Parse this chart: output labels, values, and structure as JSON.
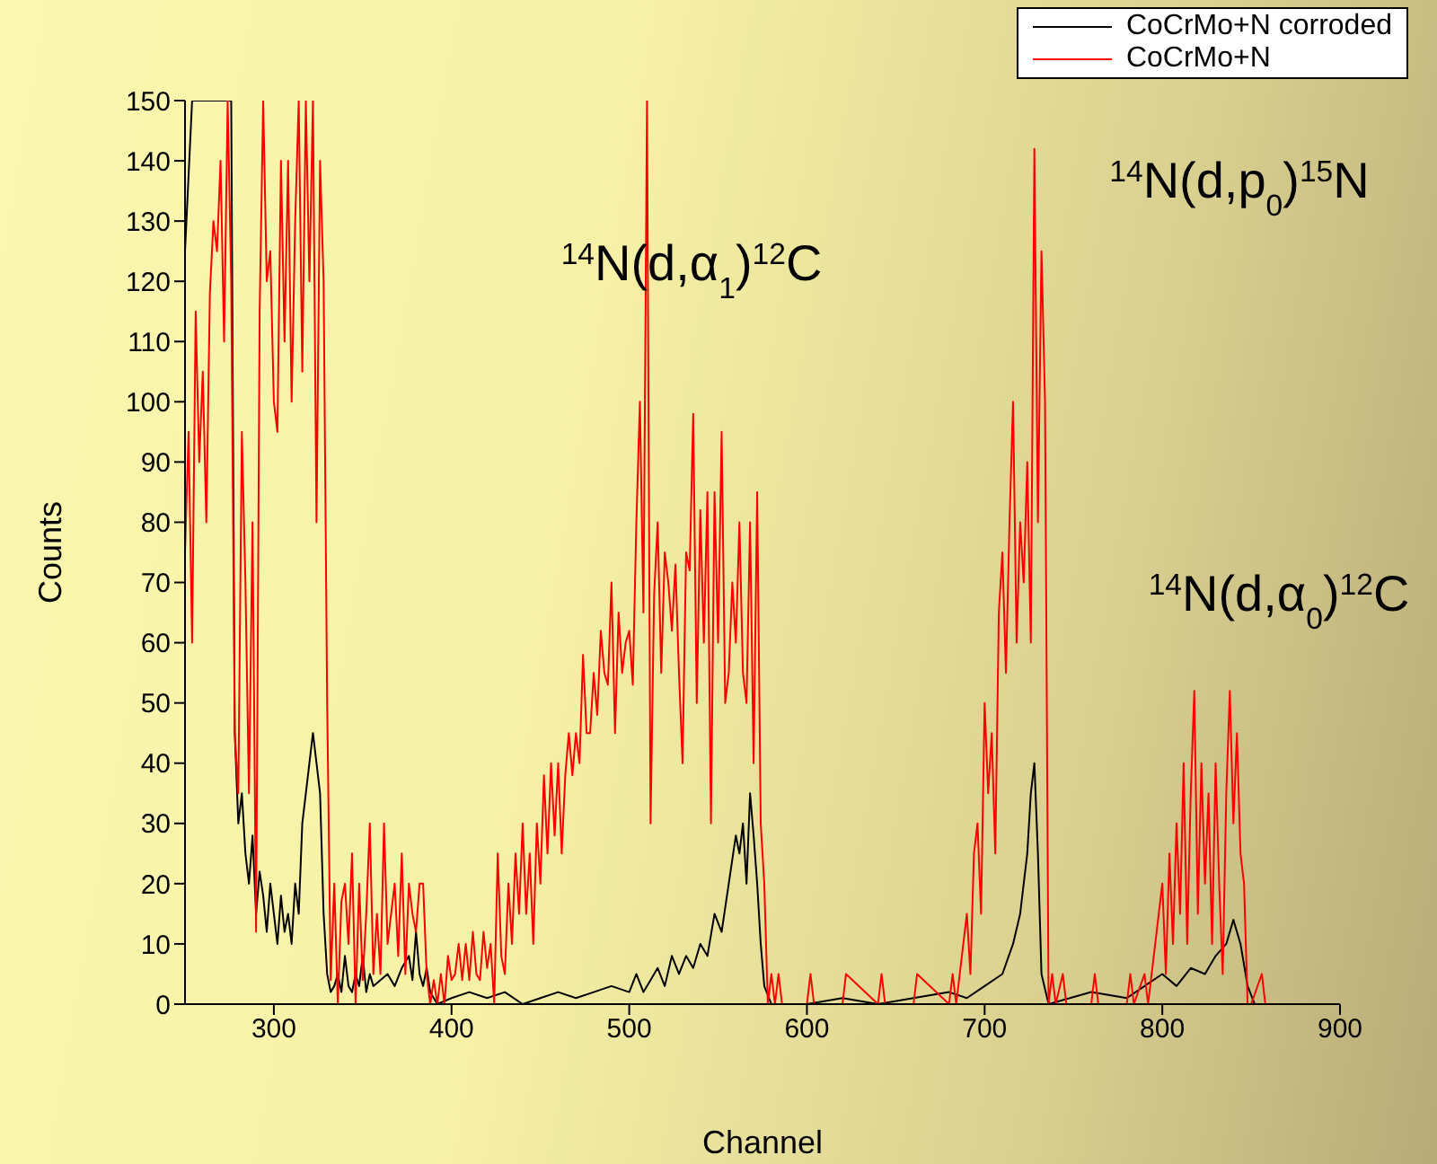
{
  "chart_data": {
    "type": "line",
    "xlabel": "Channel",
    "ylabel": "Counts",
    "xlim": [
      250,
      900
    ],
    "ylim": [
      0,
      150
    ],
    "xticks": [
      300,
      400,
      500,
      600,
      700,
      800,
      900
    ],
    "yticks": [
      0,
      10,
      20,
      30,
      40,
      50,
      60,
      70,
      80,
      90,
      100,
      110,
      120,
      130,
      140,
      150
    ],
    "grid": false,
    "legend": "top right",
    "marker": "none",
    "line_style": "solid",
    "annotations": [
      "$^{14}$N(d,α$_{1}$)$^{12}$C",
      "$^{14}$N(d,p$_{0}$)$^{15}$N",
      "$^{14}$N(d,α$_{0}$)$^{12}$C"
    ],
    "series": [
      {
        "name": "CoCrMo+N corroded",
        "color": "#000000",
        "x": [
          250,
          254,
          276,
          278,
          280,
          282,
          284,
          286,
          288,
          290,
          292,
          294,
          296,
          298,
          300,
          302,
          304,
          306,
          308,
          310,
          312,
          314,
          316,
          318,
          320,
          322,
          324,
          326,
          328,
          330,
          332,
          334,
          336,
          338,
          340,
          342,
          344,
          346,
          348,
          350,
          352,
          354,
          356,
          360,
          364,
          368,
          372,
          376,
          378,
          380,
          382,
          384,
          386,
          388,
          392,
          400,
          410,
          420,
          430,
          440,
          450,
          460,
          470,
          480,
          490,
          500,
          504,
          508,
          512,
          516,
          520,
          524,
          528,
          532,
          536,
          540,
          544,
          548,
          552,
          556,
          560,
          562,
          564,
          566,
          568,
          570,
          572,
          574,
          576,
          580,
          600,
          620,
          640,
          660,
          680,
          690,
          700,
          710,
          716,
          720,
          724,
          726,
          728,
          730,
          732,
          736,
          760,
          780,
          790,
          800,
          808,
          816,
          824,
          830,
          836,
          840,
          844,
          848,
          852,
          900
        ],
        "values": [
          125,
          150,
          150,
          45,
          30,
          35,
          25,
          20,
          28,
          15,
          22,
          18,
          12,
          20,
          15,
          10,
          18,
          12,
          15,
          10,
          20,
          15,
          30,
          35,
          40,
          45,
          40,
          35,
          15,
          5,
          2,
          3,
          5,
          2,
          8,
          3,
          2,
          5,
          3,
          8,
          2,
          5,
          3,
          4,
          5,
          3,
          6,
          8,
          4,
          12,
          5,
          3,
          6,
          2,
          0,
          1,
          2,
          1,
          2,
          0,
          1,
          2,
          1,
          2,
          3,
          2,
          5,
          2,
          4,
          6,
          3,
          8,
          5,
          8,
          6,
          10,
          8,
          15,
          12,
          20,
          28,
          25,
          30,
          20,
          35,
          28,
          20,
          10,
          3,
          0,
          0,
          1,
          0,
          1,
          2,
          1,
          3,
          5,
          10,
          15,
          25,
          35,
          40,
          25,
          5,
          0,
          2,
          1,
          3,
          5,
          3,
          6,
          5,
          8,
          10,
          14,
          10,
          3,
          0,
          0
        ]
      },
      {
        "name": "CoCrMo+N",
        "color": "#ff0000",
        "x": [
          250,
          252,
          254,
          256,
          258,
          260,
          262,
          264,
          266,
          268,
          270,
          272,
          274,
          276,
          278,
          280,
          282,
          284,
          286,
          288,
          290,
          292,
          294,
          296,
          298,
          300,
          302,
          304,
          306,
          308,
          310,
          312,
          314,
          316,
          318,
          320,
          322,
          324,
          326,
          328,
          330,
          332,
          334,
          336,
          338,
          340,
          342,
          344,
          346,
          348,
          350,
          352,
          354,
          356,
          358,
          360,
          362,
          364,
          366,
          368,
          370,
          372,
          374,
          376,
          378,
          380,
          382,
          384,
          386,
          388,
          390,
          392,
          394,
          396,
          398,
          400,
          402,
          404,
          406,
          408,
          410,
          412,
          414,
          416,
          418,
          420,
          422,
          424,
          426,
          428,
          430,
          432,
          434,
          436,
          438,
          440,
          442,
          444,
          446,
          448,
          450,
          452,
          454,
          456,
          458,
          460,
          462,
          464,
          466,
          468,
          470,
          472,
          474,
          476,
          478,
          480,
          482,
          484,
          486,
          488,
          490,
          492,
          494,
          496,
          498,
          500,
          502,
          504,
          506,
          508,
          510,
          512,
          514,
          516,
          518,
          520,
          522,
          524,
          526,
          528,
          530,
          532,
          534,
          536,
          538,
          540,
          542,
          544,
          546,
          548,
          550,
          552,
          554,
          556,
          558,
          560,
          562,
          564,
          566,
          568,
          570,
          572,
          574,
          576,
          578,
          580,
          582,
          584,
          586,
          600,
          602,
          604,
          620,
          622,
          640,
          642,
          644,
          660,
          662,
          680,
          682,
          684,
          690,
          692,
          694,
          696,
          698,
          700,
          702,
          704,
          706,
          708,
          710,
          712,
          714,
          716,
          718,
          720,
          722,
          724,
          726,
          728,
          730,
          732,
          734,
          736,
          738,
          740,
          744,
          746,
          760,
          762,
          764,
          780,
          782,
          784,
          790,
          792,
          800,
          802,
          804,
          806,
          808,
          810,
          812,
          814,
          816,
          818,
          820,
          822,
          824,
          826,
          828,
          830,
          832,
          834,
          836,
          838,
          840,
          842,
          844,
          846,
          848,
          850,
          856,
          858
        ],
        "values": [
          75,
          95,
          60,
          115,
          90,
          105,
          80,
          118,
          130,
          125,
          140,
          110,
          150,
          120,
          45,
          35,
          95,
          70,
          35,
          80,
          12,
          115,
          150,
          120,
          125,
          100,
          95,
          140,
          110,
          140,
          100,
          130,
          150,
          105,
          150,
          120,
          150,
          80,
          140,
          120,
          50,
          4,
          20,
          0,
          17,
          20,
          10,
          25,
          0,
          20,
          4,
          15,
          30,
          5,
          15,
          5,
          30,
          10,
          15,
          20,
          8,
          25,
          5,
          20,
          15,
          12,
          20,
          20,
          5,
          0,
          4,
          0,
          5,
          0,
          8,
          4,
          5,
          10,
          4,
          10,
          4,
          12,
          5,
          4,
          12,
          6,
          10,
          0,
          25,
          8,
          5,
          20,
          10,
          25,
          15,
          30,
          15,
          25,
          10,
          30,
          20,
          38,
          25,
          40,
          28,
          40,
          25,
          38,
          45,
          38,
          45,
          40,
          58,
          45,
          45,
          55,
          48,
          62,
          55,
          53,
          70,
          45,
          65,
          55,
          60,
          62,
          53,
          80,
          100,
          65,
          150,
          30,
          68,
          80,
          55,
          75,
          70,
          62,
          73,
          55,
          40,
          75,
          72,
          98,
          50,
          82,
          60,
          85,
          30,
          85,
          60,
          95,
          50,
          55,
          70,
          60,
          80,
          55,
          50,
          80,
          40,
          85,
          30,
          20,
          0,
          5,
          0,
          5,
          0,
          0,
          5,
          0,
          0,
          5,
          0,
          5,
          0,
          0,
          5,
          0,
          5,
          0,
          15,
          5,
          25,
          30,
          15,
          50,
          35,
          45,
          25,
          65,
          75,
          55,
          80,
          100,
          60,
          80,
          70,
          90,
          60,
          142,
          80,
          125,
          100,
          0,
          5,
          0,
          5,
          0,
          0,
          5,
          0,
          0,
          5,
          0,
          5,
          0,
          20,
          5,
          25,
          10,
          30,
          15,
          40,
          10,
          35,
          52,
          15,
          40,
          20,
          35,
          10,
          40,
          20,
          5,
          35,
          52,
          30,
          45,
          25,
          20,
          0,
          0,
          5,
          0
        ]
      }
    ]
  }
}
